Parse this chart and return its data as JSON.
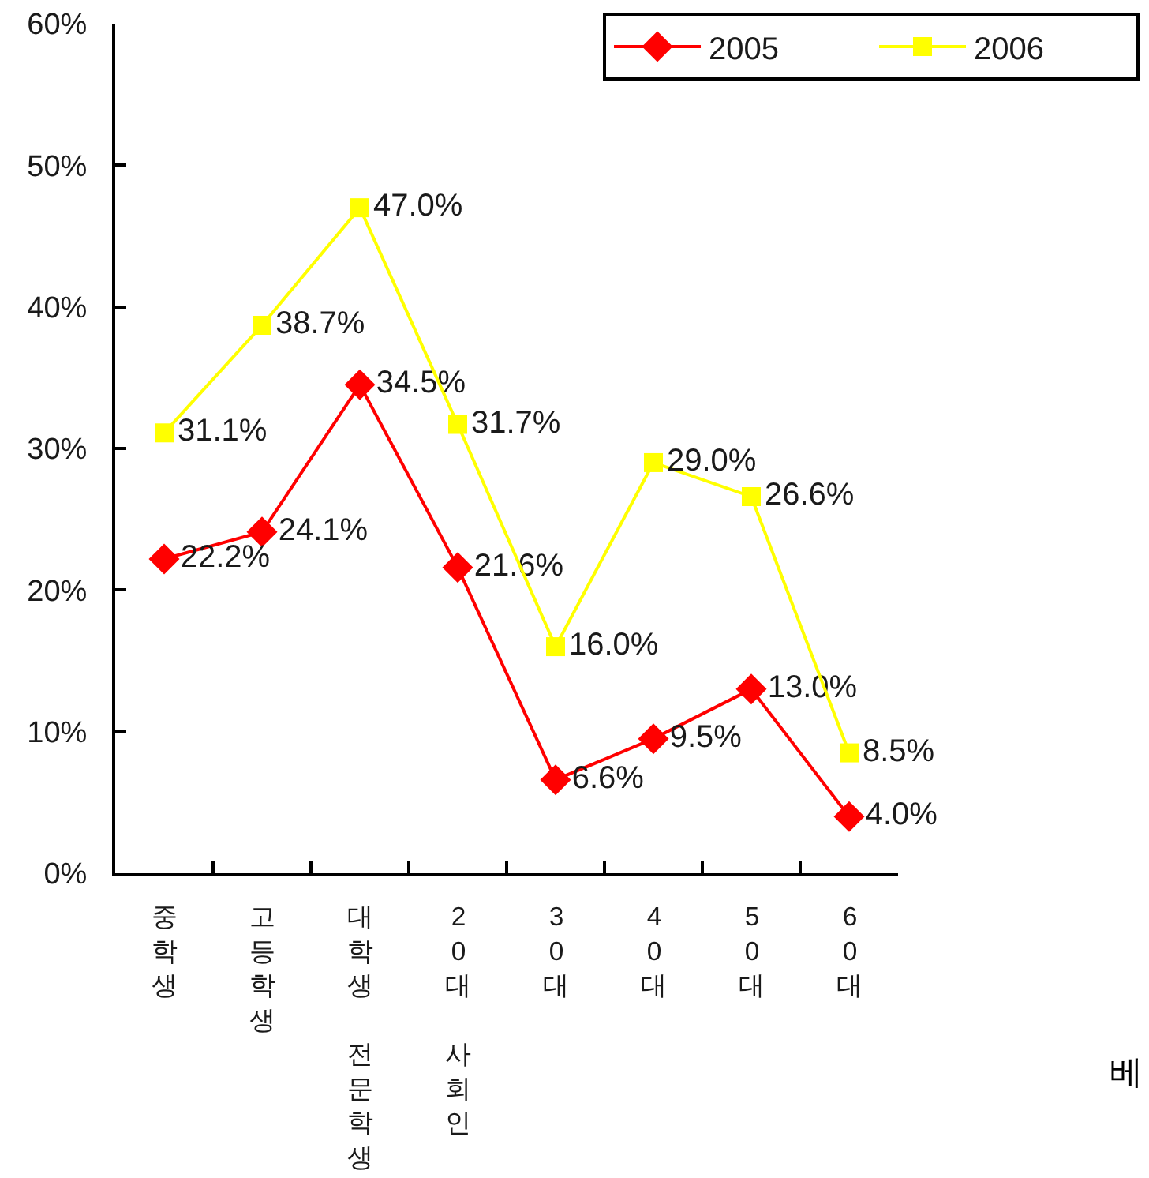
{
  "chart_data": {
    "type": "line",
    "categories": [
      "중학생",
      "고등학생",
      "대학생 전문학생",
      "20대 사회인",
      "30대",
      "40대",
      "50대",
      "60대"
    ],
    "series": [
      {
        "name": "2005",
        "color": "#ff0000",
        "marker": "diamond",
        "values": [
          22.2,
          24.1,
          34.5,
          21.6,
          6.6,
          9.5,
          13.0,
          4.0
        ],
        "value_labels": [
          "22.2%",
          "24.1%",
          "34.5%",
          "21.6%",
          "6.6%",
          "9.5%",
          "13.0%",
          "4.0%"
        ]
      },
      {
        "name": "2006",
        "color": "#ffff00",
        "marker": "square",
        "values": [
          31.1,
          38.7,
          47.0,
          31.7,
          16.0,
          29.0,
          26.6,
          8.5
        ],
        "value_labels": [
          "31.1%",
          "38.7%",
          "47.0%",
          "31.7%",
          "16.0%",
          "29.0%",
          "26.6%",
          "8.5%"
        ]
      }
    ],
    "ylim": [
      0,
      60
    ],
    "yticks": [
      {
        "value": 0,
        "label": "0%"
      },
      {
        "value": 10,
        "label": "10%"
      },
      {
        "value": 20,
        "label": "20%"
      },
      {
        "value": 30,
        "label": "30%"
      },
      {
        "value": 40,
        "label": "40%"
      },
      {
        "value": 50,
        "label": "50%"
      },
      {
        "value": 60,
        "label": "60%"
      }
    ],
    "legend": "top right",
    "annotations": [
      "베"
    ]
  }
}
